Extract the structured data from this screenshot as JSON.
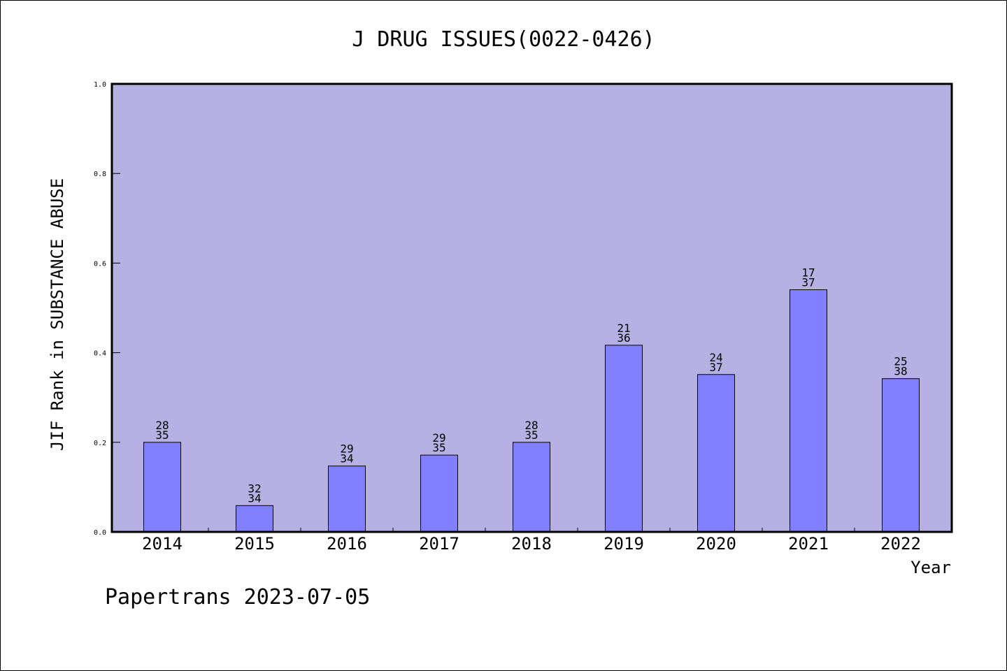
{
  "chart_data": {
    "type": "bar",
    "title": "J DRUG ISSUES(0022-0426)",
    "xlabel": "Year",
    "ylabel": "JIF Rank in SUBSTANCE ABUSE",
    "ylim": [
      0,
      1.0
    ],
    "yticks": [
      "0.0",
      "0.2",
      "0.4",
      "0.6",
      "0.8",
      "1.0"
    ],
    "grid": false,
    "categories": [
      "2014",
      "2015",
      "2016",
      "2017",
      "2018",
      "2019",
      "2020",
      "2021",
      "2022"
    ],
    "values": [
      0.2,
      0.0588,
      0.1471,
      0.1714,
      0.2,
      0.4167,
      0.3514,
      0.5405,
      0.3421
    ],
    "labels": [
      {
        "rank": "28",
        "total": "35"
      },
      {
        "rank": "32",
        "total": "34"
      },
      {
        "rank": "29",
        "total": "34"
      },
      {
        "rank": "29",
        "total": "35"
      },
      {
        "rank": "28",
        "total": "35"
      },
      {
        "rank": "21",
        "total": "36"
      },
      {
        "rank": "24",
        "total": "37"
      },
      {
        "rank": "17",
        "total": "37"
      },
      {
        "rank": "25",
        "total": "38"
      }
    ]
  },
  "footer": "Papertrans 2023-07-05",
  "colors": {
    "plot_background": "#b7b1e3",
    "bar_fill": "#8080ff",
    "bar_stroke": "#000000",
    "axis": "#000000"
  }
}
